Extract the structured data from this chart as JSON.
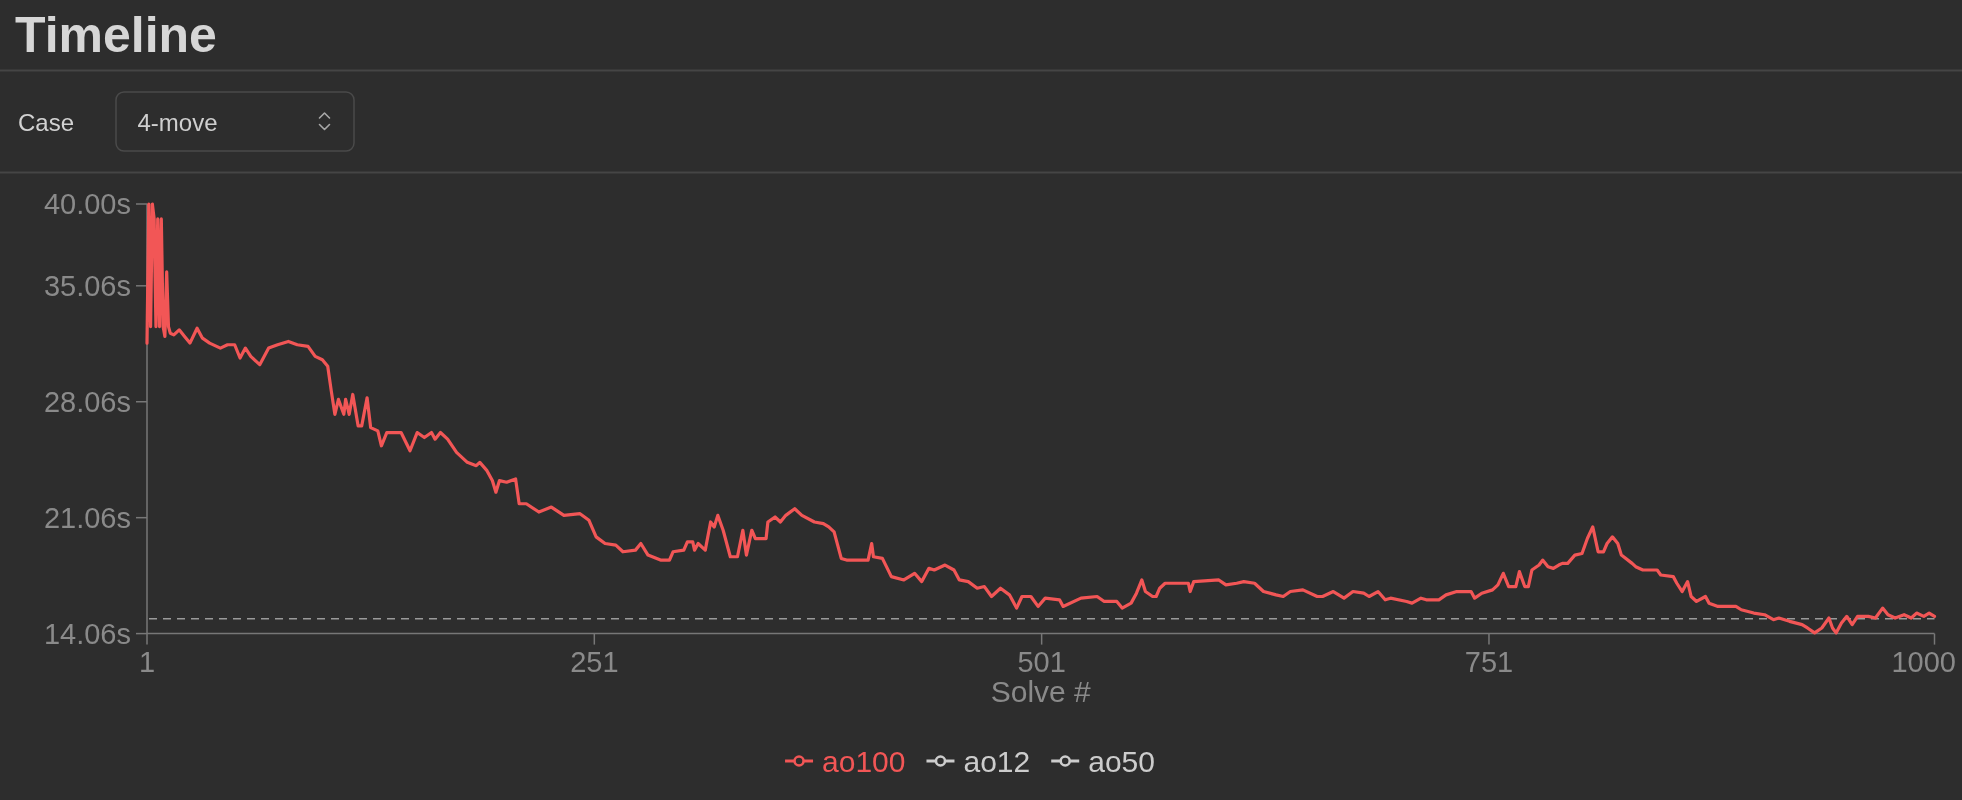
{
  "chart_data": {
    "type": "line",
    "title": "Timeline",
    "annotations": [
      "Case",
      "4-move"
    ],
    "xlabel": "Solve #",
    "xlim": [
      1,
      1000
    ],
    "xticks": [
      1,
      251,
      501,
      751,
      1000
    ],
    "ylim": [
      14.06,
      40
    ],
    "yticks": [
      {
        "value": 14.06,
        "label": "14.06s"
      },
      {
        "value": 21.06,
        "label": "21.06s"
      },
      {
        "value": 28.06,
        "label": "28.06s"
      },
      {
        "value": 35.06,
        "label": "35.06s"
      },
      {
        "value": 40,
        "label": "40.00s"
      }
    ],
    "x": [
      1,
      2,
      3,
      4,
      5,
      6,
      7,
      8,
      9,
      10,
      11,
      12,
      13,
      14,
      16,
      19,
      22,
      25,
      29,
      32,
      36,
      42,
      46,
      50,
      53,
      56,
      59,
      64,
      69,
      74,
      80,
      85,
      91,
      95,
      99,
      102,
      104,
      106,
      108,
      111,
      112,
      114,
      116,
      119,
      121,
      124,
      126,
      130,
      132,
      135,
      143,
      148,
      152,
      156,
      160,
      162,
      165,
      169,
      174,
      180,
      185,
      187,
      191,
      194,
      196,
      198,
      202,
      207,
      209,
      213,
      220,
      227,
      234,
      243,
      248,
      252,
      257,
      263,
      267,
      274,
      277,
      281,
      288,
      293,
      295,
      301,
      303,
      306,
      307,
      309,
      313,
      316,
      318,
      320,
      323,
      327,
      331,
      334,
      336,
      339,
      341,
      347,
      348,
      352,
      355,
      358,
      363,
      367,
      374,
      379,
      382,
      385,
      389,
      392,
      404,
      406,
      407,
      412,
      417,
      424,
      430,
      434,
      438,
      441,
      447,
      452,
      455,
      460,
      465,
      469,
      473,
      478,
      483,
      487,
      490,
      495,
      499,
      503,
      511,
      513,
      523,
      532,
      536,
      543,
      546,
      551,
      554,
      557,
      559,
      563,
      565,
      567,
      570,
      583,
      584,
      586,
      600,
      604,
      610,
      614,
      620,
      625,
      632,
      636,
      640,
      647,
      655,
      658,
      664,
      670,
      675,
      681,
      684,
      689,
      693,
      696,
      705,
      708,
      713,
      716,
      723,
      727,
      733,
      741,
      743,
      747,
      753,
      756,
      759,
      762,
      766,
      768,
      771,
      773,
      775,
      779,
      781,
      784,
      787,
      790,
      792,
      795,
      799,
      803,
      806,
      809,
      812,
      815,
      817,
      820,
      823,
      825,
      831,
      833,
      837,
      845,
      847,
      854,
      856,
      859,
      862,
      864,
      867,
      872,
      874,
      879,
      889,
      892,
      899,
      905,
      910,
      913,
      919,
      926,
      929,
      933,
      937,
      941,
      943,
      945,
      948,
      951,
      954,
      957,
      963,
      967,
      971,
      974,
      978,
      983,
      987,
      990,
      994,
      997,
      1000
    ],
    "series": [
      {
        "name": "ao100",
        "color": "#f25656",
        "values": [
          31.6,
          40.0,
          32.6,
          40.0,
          39.1,
          32.6,
          39.1,
          32.6,
          39.1,
          32.6,
          32.0,
          35.9,
          32.6,
          32.2,
          32.1,
          32.4,
          32.0,
          31.6,
          32.5,
          31.9,
          31.6,
          31.3,
          31.5,
          31.5,
          30.7,
          31.3,
          30.8,
          30.3,
          31.3,
          31.5,
          31.7,
          31.5,
          31.4,
          30.8,
          30.6,
          30.2,
          28.7,
          27.3,
          28.2,
          27.3,
          28.2,
          27.3,
          28.5,
          26.6,
          26.6,
          28.3,
          26.5,
          26.3,
          25.4,
          26.2,
          26.2,
          25.1,
          26.2,
          25.9,
          26.2,
          25.8,
          26.2,
          25.8,
          25.0,
          24.4,
          24.2,
          24.4,
          23.9,
          23.3,
          22.6,
          23.3,
          23.2,
          23.4,
          21.9,
          21.9,
          21.4,
          21.7,
          21.2,
          21.3,
          20.9,
          19.9,
          19.5,
          19.4,
          19.0,
          19.1,
          19.5,
          18.8,
          18.5,
          18.5,
          19.0,
          19.1,
          19.6,
          19.6,
          19.1,
          19.5,
          19.1,
          20.8,
          20.5,
          21.2,
          20.3,
          18.7,
          18.7,
          20.3,
          18.8,
          20.3,
          19.8,
          19.8,
          20.8,
          21.1,
          20.8,
          21.2,
          21.6,
          21.2,
          20.8,
          20.7,
          20.5,
          20.2,
          18.6,
          18.5,
          18.5,
          19.5,
          18.7,
          18.6,
          17.5,
          17.3,
          17.7,
          17.2,
          18.0,
          17.9,
          18.2,
          17.9,
          17.3,
          17.2,
          16.8,
          16.9,
          16.3,
          16.8,
          16.4,
          15.6,
          16.3,
          16.3,
          15.7,
          16.2,
          16.1,
          15.7,
          16.2,
          16.3,
          16.0,
          16.0,
          15.6,
          15.9,
          16.5,
          17.3,
          16.6,
          16.3,
          16.3,
          16.8,
          17.1,
          17.1,
          16.6,
          17.2,
          17.3,
          17.0,
          17.1,
          17.2,
          17.1,
          16.6,
          16.4,
          16.3,
          16.6,
          16.7,
          16.3,
          16.3,
          16.6,
          16.2,
          16.6,
          16.5,
          16.3,
          16.6,
          16.1,
          16.2,
          16.0,
          15.9,
          16.2,
          16.1,
          16.1,
          16.4,
          16.6,
          16.6,
          16.2,
          16.5,
          16.7,
          17.0,
          17.7,
          16.9,
          16.9,
          17.8,
          16.9,
          16.9,
          17.9,
          18.2,
          18.5,
          18.1,
          18.0,
          18.2,
          18.3,
          18.3,
          18.8,
          18.9,
          19.8,
          20.5,
          19.0,
          19.0,
          19.5,
          19.9,
          19.5,
          18.8,
          18.3,
          18.1,
          17.9,
          17.9,
          17.6,
          17.5,
          17.1,
          16.6,
          17.2,
          16.3,
          16.0,
          16.3,
          15.9,
          15.7,
          15.7,
          15.5,
          15.3,
          15.2,
          14.9,
          15.0,
          14.8,
          14.6,
          14.4,
          14.1,
          14.4,
          15.0,
          14.4,
          14.1,
          14.7,
          15.1,
          14.6,
          15.1,
          15.1,
          15.0,
          15.6,
          15.2,
          15.0,
          15.2,
          15.0,
          15.3,
          15.1,
          15.3,
          15.1
        ]
      },
      {
        "name": "ao12",
        "color": "#cccccc",
        "values": [
          null,
          null,
          null,
          null,
          null,
          null,
          null,
          null,
          null,
          null,
          null,
          null,
          null,
          null,
          null,
          null,
          null,
          null,
          null,
          null,
          null,
          null,
          null,
          null,
          null,
          null,
          null,
          null,
          null,
          null,
          null,
          null,
          null,
          null,
          null,
          null,
          null,
          null,
          null,
          null,
          null,
          null,
          null,
          null,
          null,
          null,
          null,
          null,
          null,
          null,
          null,
          null,
          null,
          null,
          null,
          null,
          null,
          null,
          null,
          null,
          null,
          null,
          null,
          null,
          null,
          null,
          null,
          null,
          null,
          null,
          null,
          null,
          null,
          null,
          null,
          null,
          null,
          null,
          null,
          null,
          null,
          null,
          null,
          null,
          null,
          null,
          null,
          null,
          null,
          null,
          null,
          null,
          null,
          null,
          null,
          null,
          null,
          null,
          null,
          null,
          null,
          null,
          null,
          null,
          null,
          null,
          null,
          null,
          null,
          null,
          null,
          null,
          null,
          null,
          null,
          null,
          null,
          null,
          null,
          null,
          null,
          null,
          null,
          null,
          null,
          null,
          null,
          null,
          null,
          null,
          null,
          null,
          null,
          null,
          null,
          null,
          null,
          null,
          null,
          null,
          null,
          null,
          null,
          null,
          null,
          null,
          null,
          null,
          null,
          null,
          null,
          null,
          null,
          null,
          null,
          null,
          null,
          null,
          null,
          null,
          null,
          null,
          null,
          null,
          null,
          null,
          null,
          null,
          null,
          null,
          null,
          null,
          null,
          null,
          null,
          null,
          null,
          null,
          null,
          null,
          null,
          null,
          null,
          null,
          null,
          null,
          null,
          null,
          null,
          null,
          null,
          null,
          null,
          null,
          null,
          null,
          null,
          null,
          null,
          null,
          null,
          null,
          null,
          null,
          null,
          null,
          null,
          null,
          null,
          null,
          null,
          null,
          null,
          null,
          null,
          null,
          null,
          null,
          null,
          null,
          null,
          null,
          null,
          null,
          null,
          null,
          null,
          null,
          null,
          null,
          null,
          null,
          null,
          null,
          null,
          null,
          null,
          null,
          null,
          null,
          null,
          null,
          null,
          null,
          null,
          null,
          null,
          null,
          null,
          null,
          null,
          null,
          null,
          null,
          null
        ]
      },
      {
        "name": "ao50",
        "color": "#cccccc",
        "values": [
          null,
          null,
          null,
          null,
          null,
          null,
          null,
          null,
          null,
          null,
          null,
          null,
          null,
          null,
          null,
          null,
          null,
          null,
          null,
          null,
          null,
          null,
          null,
          null,
          null,
          null,
          null,
          null,
          null,
          null,
          null,
          null,
          null,
          null,
          null,
          null,
          null,
          null,
          null,
          null,
          null,
          null,
          null,
          null,
          null,
          null,
          null,
          null,
          null,
          null,
          null,
          null,
          null,
          null,
          null,
          null,
          null,
          null,
          null,
          null,
          null,
          null,
          null,
          null,
          null,
          null,
          null,
          null,
          null,
          null,
          null,
          null,
          null,
          null,
          null,
          null,
          null,
          null,
          null,
          null,
          null,
          null,
          null,
          null,
          null,
          null,
          null,
          null,
          null,
          null,
          null,
          null,
          null,
          null,
          null,
          null,
          null,
          null,
          null,
          null,
          null,
          null,
          null,
          null,
          null,
          null,
          null,
          null,
          null,
          null,
          null,
          null,
          null,
          null,
          null,
          null,
          null,
          null,
          null,
          null,
          null,
          null,
          null,
          null,
          null,
          null,
          null,
          null,
          null,
          null,
          null,
          null,
          null,
          null,
          null,
          null,
          null,
          null,
          null,
          null,
          null,
          null,
          null,
          null,
          null,
          null,
          null,
          null,
          null,
          null,
          null,
          null,
          null,
          null,
          null,
          null,
          null,
          null,
          null,
          null,
          null,
          null,
          null,
          null,
          null,
          null,
          null,
          null,
          null,
          null,
          null,
          null,
          null,
          null,
          null,
          null,
          null,
          null,
          null,
          null,
          null,
          null,
          null,
          null,
          null,
          null,
          null,
          null,
          null,
          null,
          null,
          null,
          null,
          null,
          null,
          null,
          null,
          null,
          null,
          null,
          null,
          null,
          null,
          null,
          null,
          null,
          null,
          null,
          null,
          null,
          null,
          null,
          null,
          null,
          null,
          null,
          null,
          null,
          null,
          null,
          null,
          null,
          null,
          null,
          null,
          null,
          null,
          null,
          null,
          null,
          null,
          null,
          null,
          null,
          null,
          null,
          null,
          null,
          null,
          null,
          null,
          null,
          null,
          null,
          null,
          null,
          null,
          null,
          null,
          null,
          null,
          null,
          null,
          null,
          null
        ]
      }
    ],
    "ref_lines": [
      {
        "axis": "y",
        "value": 14.95,
        "color": "#9a9a9a",
        "line_style": "dashed"
      }
    ],
    "legend": "bottom",
    "marker": "none"
  }
}
